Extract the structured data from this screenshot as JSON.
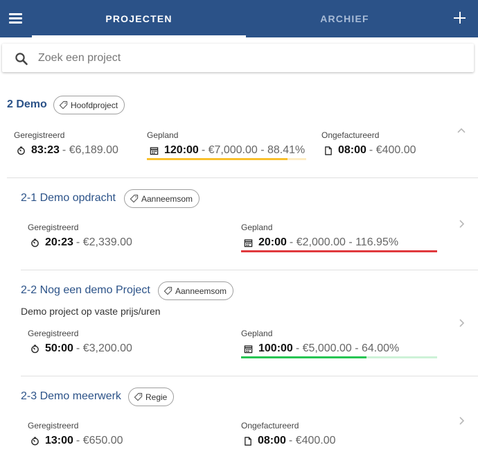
{
  "header": {
    "tabs": [
      {
        "label": "PROJECTEN",
        "active": true
      },
      {
        "label": "ARCHIEF",
        "active": false
      }
    ],
    "menu_icon": "hamburger-icon",
    "add_icon": "plus-icon",
    "bg_color": "#2b5288"
  },
  "search": {
    "placeholder": "Zoek een project",
    "value": ""
  },
  "project": {
    "title": "2 Demo",
    "tag": "Hoofdproject",
    "registered": {
      "label": "Geregistreerd",
      "hours": "83:23",
      "amount": "- €6,189.00"
    },
    "planned": {
      "label": "Gepland",
      "hours": "120:00",
      "amount": "- €7,000.00 - 88.41%",
      "progress": 0.8841,
      "color": "#f9c02d",
      "track_color": "#fdecc2"
    },
    "uninvoiced": {
      "label": "Ongefactureerd",
      "hours": "08:00",
      "amount": "- €400.00"
    }
  },
  "subprojects": [
    {
      "title": "2-1 Demo opdracht",
      "tag": "Aanneemsom",
      "registered": {
        "label": "Geregistreerd",
        "hours": "20:23",
        "amount": "- €2,339.00"
      },
      "planned": {
        "label": "Gepland",
        "hours": "20:00",
        "amount": "- €2,000.00 - 116.95%",
        "progress": 1.0,
        "color": "#e0393e",
        "track_color": "#f6c7c8"
      }
    },
    {
      "title": "2-2 Nog een demo Project",
      "tag": "Aanneemsom",
      "description": "Demo project op vaste prijs/uren",
      "registered": {
        "label": "Geregistreerd",
        "hours": "50:00",
        "amount": "- €3,200.00"
      },
      "planned": {
        "label": "Gepland",
        "hours": "100:00",
        "amount": "- €5,000.00 - 64.00%",
        "progress": 0.64,
        "color": "#27c553",
        "track_color": "#cdf2d7"
      }
    },
    {
      "title": "2-3 Demo meerwerk",
      "tag": "Regie",
      "registered": {
        "label": "Geregistreerd",
        "hours": "13:00",
        "amount": "- €650.00"
      },
      "uninvoiced": {
        "label": "Ongefactureerd",
        "hours": "08:00",
        "amount": "- €400.00"
      }
    }
  ]
}
